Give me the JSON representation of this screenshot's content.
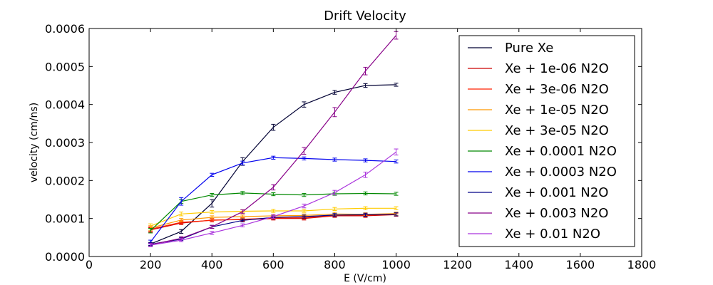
{
  "chart_data": {
    "type": "line",
    "title": "Drift Velocity",
    "xlabel": "E (V/cm)",
    "ylabel": "velocity (cm/ns)",
    "xlim": [
      0,
      1800
    ],
    "ylim": [
      0,
      0.0006
    ],
    "xticks": [
      0,
      200,
      400,
      600,
      800,
      1000,
      1200,
      1400,
      1600,
      1800
    ],
    "xtick_labels": [
      "0",
      "200",
      "400",
      "600",
      "800",
      "1000",
      "1200",
      "1400",
      "1600",
      "1800"
    ],
    "yticks": [
      0,
      0.0001,
      0.0002,
      0.0003,
      0.0004,
      0.0005,
      0.0006
    ],
    "ytick_labels": [
      "0.0000",
      "0.0001",
      "0.0002",
      "0.0003",
      "0.0004",
      "0.0005",
      "0.0006"
    ],
    "grid": false,
    "legend_position": "top-right",
    "error_bars": true,
    "series": [
      {
        "name": "Pure Xe",
        "color": "#000033",
        "x": [
          200,
          300,
          400,
          500,
          600,
          700,
          800,
          900,
          1000
        ],
        "y": [
          3.3e-05,
          6.6e-05,
          0.00014,
          0.00025,
          0.00034,
          0.0004,
          0.000432,
          0.00045,
          0.000452
        ],
        "err": [
          4e-06,
          5e-06,
          1e-05,
          1e-05,
          8e-06,
          7e-06,
          5e-06,
          5e-06,
          4e-06
        ]
      },
      {
        "name": "Xe + 1e-06 N2O",
        "color": "#cc0000",
        "x": [
          200,
          300,
          400,
          500,
          600,
          700,
          800,
          900,
          1000
        ],
        "y": [
          7e-05,
          8.8e-05,
          9.6e-05,
          9.7e-05,
          0.0001,
          0.0001,
          0.000107,
          0.000107,
          0.00011
        ],
        "err": [
          6e-06,
          4e-06,
          4e-06,
          4e-06,
          4e-06,
          4e-06,
          4e-06,
          4e-06,
          4e-06
        ]
      },
      {
        "name": "Xe + 3e-06 N2O",
        "color": "#ff2200",
        "x": [
          200,
          300,
          400,
          500,
          600,
          700,
          800,
          900,
          1000
        ],
        "y": [
          7.2e-05,
          9e-05,
          9.5e-05,
          9.8e-05,
          0.000101,
          0.000102,
          0.000108,
          0.000109,
          0.000111
        ],
        "err": [
          6e-06,
          4e-06,
          4e-06,
          4e-06,
          4e-06,
          4e-06,
          4e-06,
          4e-06,
          4e-06
        ]
      },
      {
        "name": "Xe + 1e-05 N2O",
        "color": "#ff9900",
        "x": [
          200,
          300,
          400,
          500,
          600,
          700,
          800,
          900,
          1000
        ],
        "y": [
          7.5e-05,
          9.6e-05,
          0.000103,
          0.000105,
          0.000107,
          0.000108,
          0.000112,
          0.000111,
          0.000113
        ],
        "err": [
          6e-06,
          4e-06,
          4e-06,
          4e-06,
          4e-06,
          4e-06,
          4e-06,
          4e-06,
          4e-06
        ]
      },
      {
        "name": "Xe + 3e-05 N2O",
        "color": "#ffcc00",
        "x": [
          200,
          300,
          400,
          500,
          600,
          700,
          800,
          900,
          1000
        ],
        "y": [
          8e-05,
          0.000112,
          0.000117,
          0.000119,
          0.00012,
          0.00012,
          0.000125,
          0.000127,
          0.000127
        ],
        "err": [
          6e-06,
          5e-06,
          4e-06,
          4e-06,
          4e-06,
          4e-06,
          4e-06,
          4e-06,
          4e-06
        ]
      },
      {
        "name": "Xe + 0.0001 N2O",
        "color": "#008800",
        "x": [
          200,
          300,
          400,
          500,
          600,
          700,
          800,
          900,
          1000
        ],
        "y": [
          6.8e-05,
          0.000145,
          0.000162,
          0.000167,
          0.000164,
          0.000162,
          0.000165,
          0.000166,
          0.000165
        ],
        "err": [
          6e-06,
          5e-06,
          4e-06,
          4e-06,
          4e-06,
          4e-06,
          4e-06,
          4e-06,
          4e-06
        ]
      },
      {
        "name": "Xe + 0.0003 N2O",
        "color": "#0000ee",
        "x": [
          200,
          300,
          400,
          500,
          600,
          700,
          800,
          900,
          1000
        ],
        "y": [
          3.8e-05,
          0.000145,
          0.000215,
          0.000246,
          0.00026,
          0.000258,
          0.000255,
          0.000253,
          0.00025
        ],
        "err": [
          5e-06,
          1e-05,
          4e-06,
          5e-06,
          4e-06,
          4e-06,
          4e-06,
          4e-06,
          4e-06
        ]
      },
      {
        "name": "Xe + 0.001 N2O",
        "color": "#000088",
        "x": [
          200,
          300,
          400,
          500,
          600,
          700,
          800,
          900,
          1000
        ],
        "y": [
          3.2e-05,
          4.6e-05,
          7.8e-05,
          9.5e-05,
          0.000103,
          0.000105,
          0.000109,
          0.00011,
          0.000111
        ],
        "err": [
          4e-06,
          4e-06,
          4e-06,
          4e-06,
          4e-06,
          4e-06,
          4e-06,
          4e-06,
          4e-06
        ]
      },
      {
        "name": "Xe + 0.003 N2O",
        "color": "#880088",
        "x": [
          200,
          300,
          400,
          500,
          600,
          700,
          800,
          900,
          1000
        ],
        "y": [
          3.1e-05,
          4.8e-05,
          7.8e-05,
          0.000118,
          0.000182,
          0.000278,
          0.00038,
          0.000488,
          0.000582
        ],
        "err": [
          4e-06,
          4e-06,
          4e-06,
          5e-06,
          7e-06,
          9e-06,
          1.2e-05,
          1e-05,
          1e-05
        ]
      },
      {
        "name": "Xe + 0.01 N2O",
        "color": "#aa33dd",
        "x": [
          200,
          300,
          400,
          500,
          600,
          700,
          800,
          900,
          1000
        ],
        "y": [
          3e-05,
          4.3e-05,
          6.2e-05,
          8.2e-05,
          0.000105,
          0.000133,
          0.000168,
          0.000215,
          0.000275
        ],
        "err": [
          4e-06,
          4e-06,
          4e-06,
          4e-06,
          5e-06,
          5e-06,
          6e-06,
          7e-06,
          8e-06
        ]
      }
    ]
  }
}
